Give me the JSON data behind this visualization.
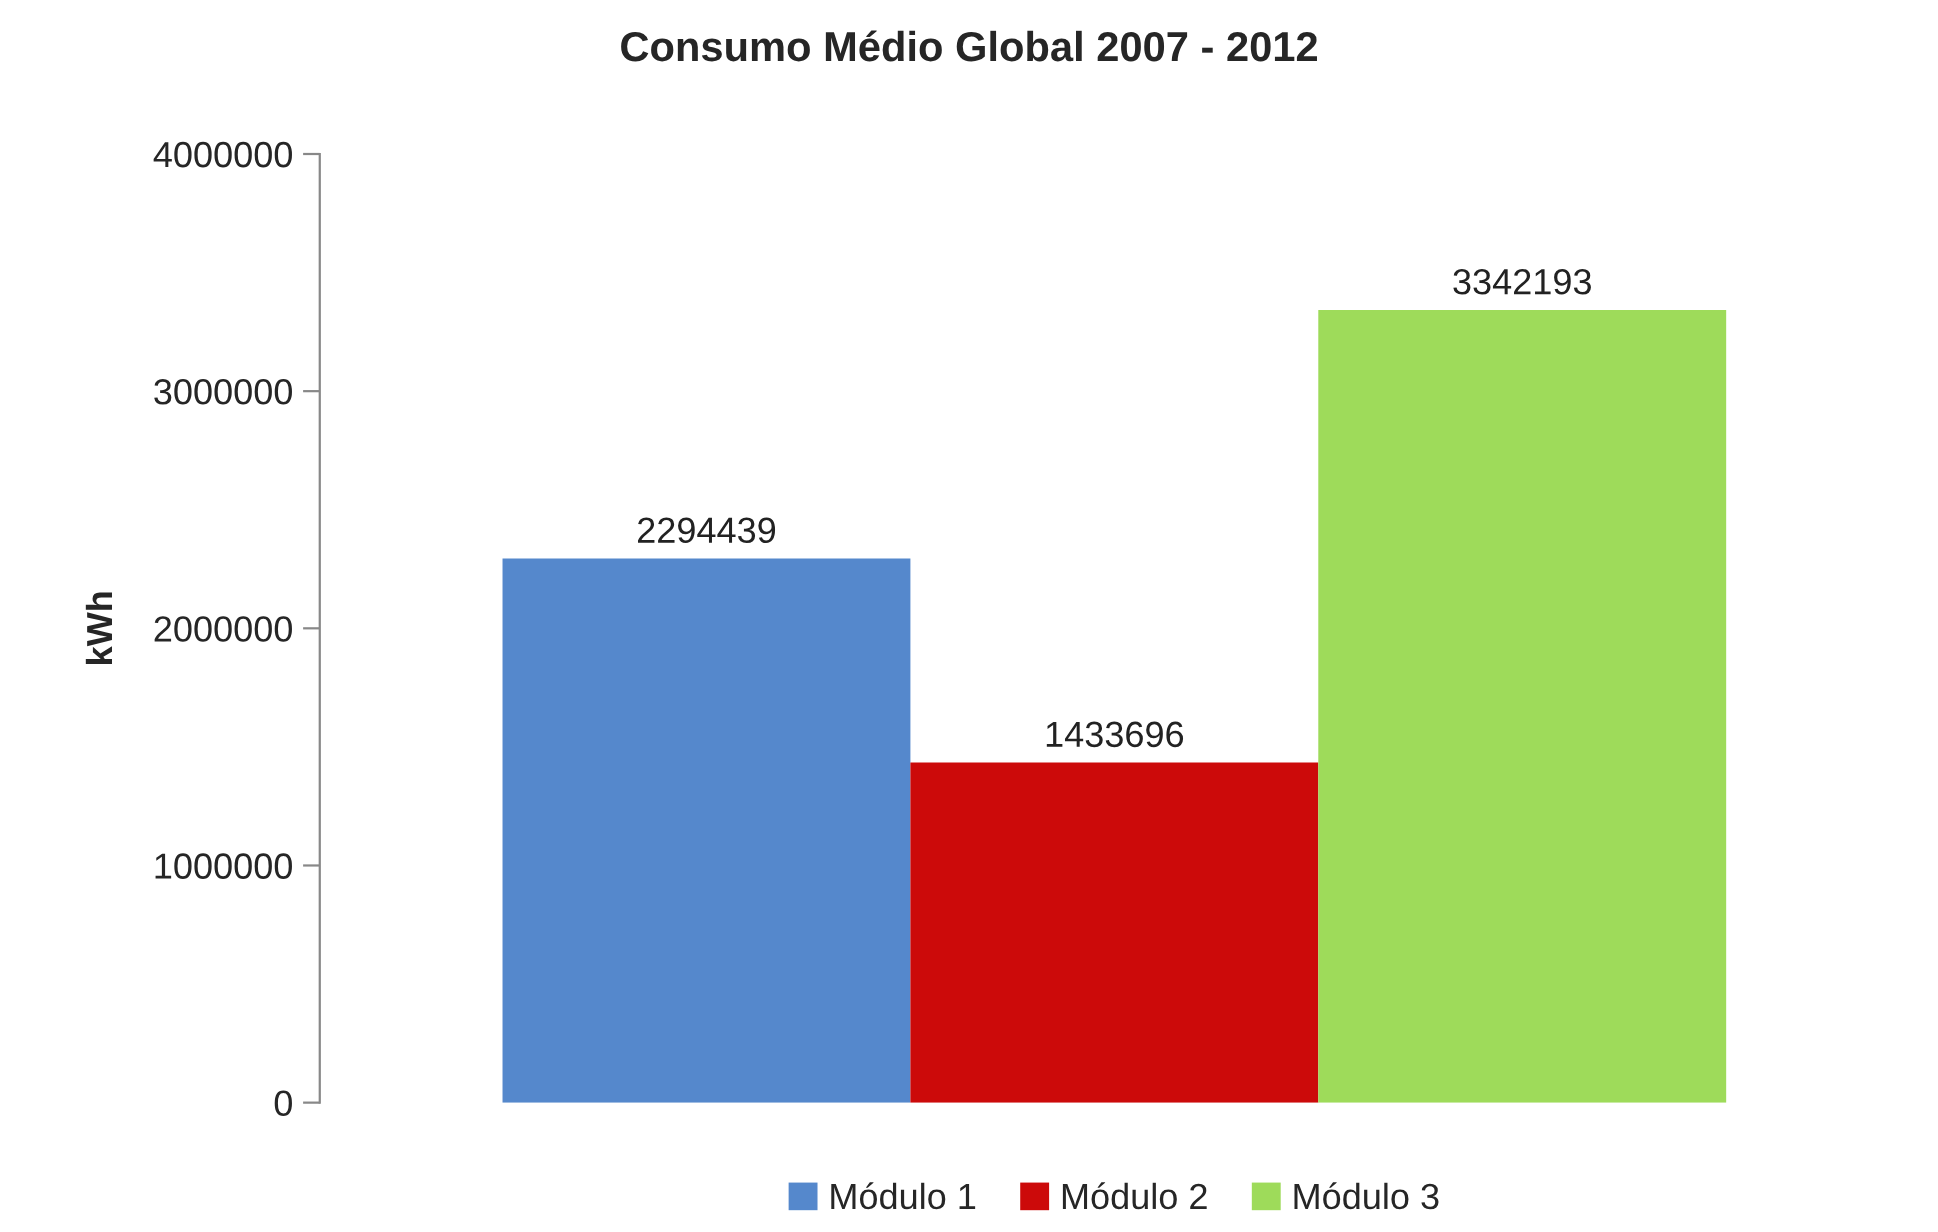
{
  "chart_data": {
    "type": "bar",
    "title": "Consumo Médio Global 2007 - 2012",
    "ylabel": "kWh",
    "categories": [
      null
    ],
    "series": [
      {
        "name": "Módulo 1",
        "color": "#5588cc",
        "values": [
          2294439
        ]
      },
      {
        "name": "Módulo 2",
        "color": "#cc0a0a",
        "values": [
          1433696
        ]
      },
      {
        "name": "Módulo 3",
        "color": "#9edb5a",
        "values": [
          3342193
        ]
      }
    ],
    "ylim": [
      0,
      4000000
    ],
    "yticks": [
      0,
      1000000,
      2000000,
      3000000,
      4000000
    ],
    "data_labels": true,
    "grid": false,
    "legend": "bottom"
  }
}
